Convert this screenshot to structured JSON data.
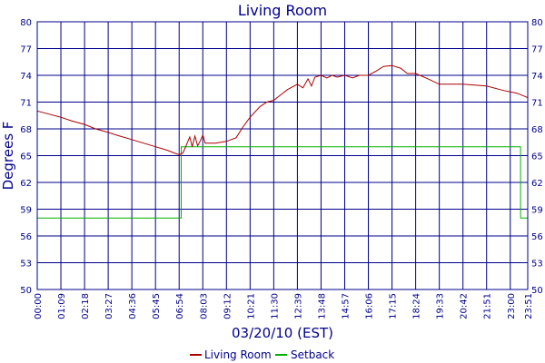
{
  "chart_data": {
    "type": "line",
    "title": "Living Room",
    "xlabel": "03/20/10 (EST)",
    "ylabel": "Degrees F",
    "ylim": [
      50,
      80
    ],
    "yticks": [
      50,
      53,
      56,
      59,
      62,
      65,
      68,
      71,
      74,
      77,
      80
    ],
    "xticks": [
      "00:00",
      "01:09",
      "02:18",
      "03:27",
      "04:36",
      "05:45",
      "06:54",
      "08:03",
      "09:12",
      "10:21",
      "11:30",
      "12:39",
      "13:48",
      "14:57",
      "16:06",
      "17:15",
      "18:24",
      "19:33",
      "20:42",
      "21:51",
      "23:00",
      "23:51"
    ],
    "grid": true,
    "legend_position": "bottom",
    "colors": {
      "living_room": "#aa0000",
      "setback": "#00b000",
      "frame": "#00008b",
      "grid": "#00008b"
    },
    "series": [
      {
        "name": "Living Room",
        "points": [
          [
            "00:00",
            70.0
          ],
          [
            "00:40",
            69.6
          ],
          [
            "01:09",
            69.3
          ],
          [
            "01:40",
            68.9
          ],
          [
            "02:18",
            68.5
          ],
          [
            "02:50",
            68.0
          ],
          [
            "03:27",
            67.6
          ],
          [
            "04:00",
            67.2
          ],
          [
            "04:36",
            66.8
          ],
          [
            "05:10",
            66.4
          ],
          [
            "05:45",
            66.0
          ],
          [
            "06:20",
            65.6
          ],
          [
            "06:40",
            65.3
          ],
          [
            "06:54",
            65.1
          ],
          [
            "07:05",
            65.3
          ],
          [
            "07:15",
            66.2
          ],
          [
            "07:25",
            67.1
          ],
          [
            "07:32",
            66.0
          ],
          [
            "07:40",
            67.2
          ],
          [
            "07:48",
            66.1
          ],
          [
            "07:55",
            66.6
          ],
          [
            "08:03",
            67.3
          ],
          [
            "08:10",
            66.4
          ],
          [
            "08:40",
            66.4
          ],
          [
            "09:12",
            66.6
          ],
          [
            "09:40",
            67.0
          ],
          [
            "10:00",
            68.2
          ],
          [
            "10:21",
            69.3
          ],
          [
            "10:50",
            70.5
          ],
          [
            "11:10",
            71.0
          ],
          [
            "11:30",
            71.2
          ],
          [
            "11:50",
            71.8
          ],
          [
            "12:10",
            72.4
          ],
          [
            "12:39",
            73.0
          ],
          [
            "12:55",
            72.6
          ],
          [
            "13:10",
            73.6
          ],
          [
            "13:20",
            72.8
          ],
          [
            "13:30",
            73.8
          ],
          [
            "13:48",
            74.0
          ],
          [
            "14:05",
            73.7
          ],
          [
            "14:20",
            74.0
          ],
          [
            "14:35",
            73.8
          ],
          [
            "14:57",
            74.0
          ],
          [
            "15:20",
            73.7
          ],
          [
            "15:40",
            74.0
          ],
          [
            "16:06",
            74.0
          ],
          [
            "16:30",
            74.5
          ],
          [
            "16:50",
            75.0
          ],
          [
            "17:15",
            75.1
          ],
          [
            "17:40",
            74.8
          ],
          [
            "18:00",
            74.2
          ],
          [
            "18:24",
            74.2
          ],
          [
            "19:00",
            73.6
          ],
          [
            "19:33",
            73.0
          ],
          [
            "20:42",
            73.0
          ],
          [
            "21:51",
            72.8
          ],
          [
            "22:40",
            72.3
          ],
          [
            "23:20",
            72.0
          ],
          [
            "23:51",
            71.5
          ]
        ]
      },
      {
        "name": "Setback",
        "points": [
          [
            "00:00",
            58
          ],
          [
            "07:00",
            58
          ],
          [
            "07:00",
            66
          ],
          [
            "23:30",
            66
          ],
          [
            "23:30",
            58
          ],
          [
            "23:51",
            58
          ]
        ]
      }
    ]
  }
}
